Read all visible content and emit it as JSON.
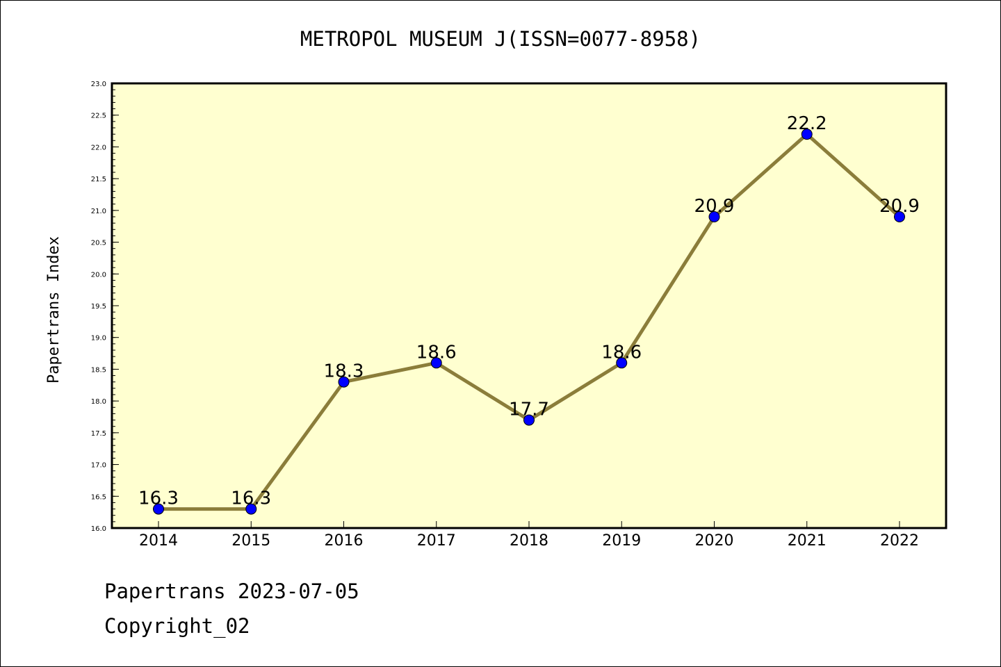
{
  "chart_data": {
    "type": "line",
    "title": "METROPOL MUSEUM J(ISSN=0077-8958)",
    "xlabel": "",
    "ylabel": "Papertrans Index",
    "categories": [
      "2014",
      "2015",
      "2016",
      "2017",
      "2018",
      "2019",
      "2020",
      "2021",
      "2022"
    ],
    "series": [
      {
        "values": [
          16.3,
          16.3,
          18.3,
          18.6,
          17.7,
          18.6,
          20.9,
          22.2,
          20.9
        ]
      }
    ],
    "data_labels": [
      "16.3",
      "16.3",
      "18.3",
      "18.6",
      "17.7",
      "18.6",
      "20.9",
      "22.2",
      "20.9"
    ],
    "ylim": [
      16.0,
      23.0
    ],
    "yticks": [
      "16.0",
      "16.5",
      "17.0",
      "17.5",
      "18.0",
      "18.5",
      "19.0",
      "19.5",
      "20.0",
      "20.5",
      "21.0",
      "21.5",
      "22.0",
      "22.5",
      "23.0"
    ],
    "grid": false,
    "legend": "none",
    "colors": {
      "plot_background": "#ffffd0",
      "line": "#8b7d3a",
      "marker": "#0000ff",
      "frame": "#000000"
    }
  },
  "footer": {
    "line1": "Papertrans 2023-07-05",
    "line2": "Copyright_02"
  }
}
